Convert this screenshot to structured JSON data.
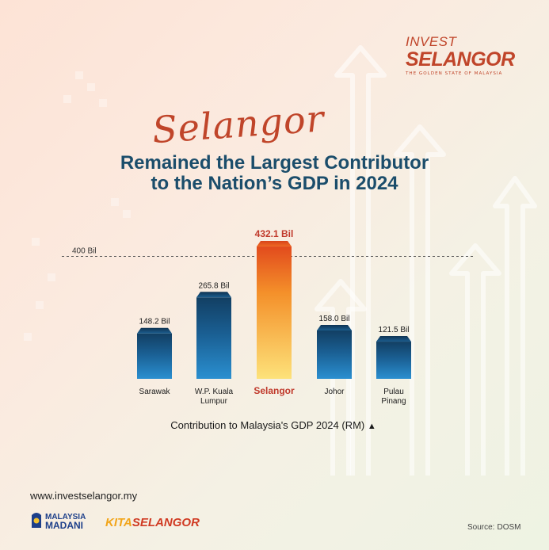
{
  "brand": {
    "line1": "INVEST",
    "line2": "SELANGOR",
    "tagline": "THE GOLDEN STATE OF MALAYSIA",
    "accent": "#c0452a"
  },
  "header": {
    "script_title": "Selangor",
    "headline_line1": "Remained the Largest Contributor",
    "headline_line2": "to the Nation’s GDP in 2024"
  },
  "chart_data": {
    "type": "bar",
    "categories": [
      "Sarawak",
      "W.P. Kuala Lumpur",
      "Selangor",
      "Johor",
      "Pulau Pinang"
    ],
    "category_lines": [
      [
        "Sarawak"
      ],
      [
        "W.P. Kuala",
        "Lumpur"
      ],
      [
        "Selangor"
      ],
      [
        "Johor"
      ],
      [
        "Pulau",
        "Pinang"
      ]
    ],
    "values": [
      148.2,
      265.8,
      432.1,
      158.0,
      121.5
    ],
    "value_labels": [
      "148.2 Bil",
      "265.8 Bil",
      "432.1 Bil",
      "158.0 Bil",
      "121.5 Bil"
    ],
    "highlight_index": 2,
    "reference_line": {
      "value": 400,
      "label": "400 Bil"
    },
    "xlabel": "Contribution to Malaysia's GDP 2024 (RM)",
    "xlabel_marker": "▲",
    "ylim": [
      0,
      440
    ],
    "grid": false,
    "colors": {
      "bar": "#1f7ab8",
      "bar_dark": "#123f63",
      "highlight": "#f6a623",
      "highlight_top": "#e24b1d",
      "highlight_label": "#c0392b"
    }
  },
  "footer": {
    "website": "www.investselangor.my",
    "logo1_line1": "MALAYSIA",
    "logo1_line2": "MADANI",
    "logo2_part1": "KITA",
    "logo2_part2": "SELANGOR",
    "source_label": "Source:",
    "source_value": "DOSM"
  }
}
